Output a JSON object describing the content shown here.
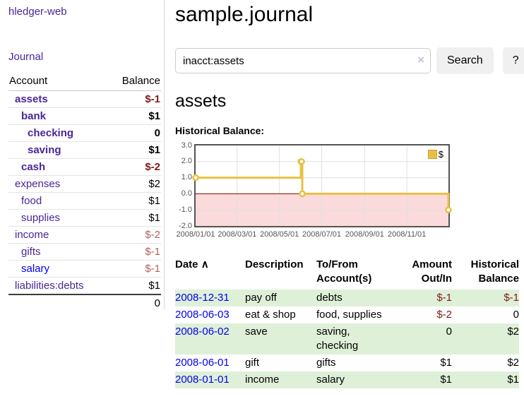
{
  "colors": {
    "link_purple": "#4b2696",
    "link_blue": "#0000ee",
    "negative_red": "#811a1a",
    "negative_muted_red": "#b26060",
    "row_stripe_green": "#dff0d8",
    "chart_gold": "#e9c044",
    "chart_negative_region": "#fadada",
    "chart_zero_line": "#8b0000"
  },
  "sidebar": {
    "brand": "hledger-web",
    "nav_journal": "Journal",
    "accounts": {
      "col_account": "Account",
      "col_balance": "Balance",
      "rows": [
        {
          "name": "assets",
          "depth": 1,
          "bold": true,
          "balance": "$-1",
          "balance_style": "neg-strong",
          "link_style": "visited"
        },
        {
          "name": "bank",
          "depth": 2,
          "bold": true,
          "balance": "$1",
          "balance_style": "pos-strong",
          "link_style": "visited"
        },
        {
          "name": "checking",
          "depth": 3,
          "bold": true,
          "balance": "0",
          "balance_style": "pos-strong",
          "link_style": "visited"
        },
        {
          "name": "saving",
          "depth": 3,
          "bold": true,
          "balance": "$1",
          "balance_style": "pos-strong",
          "link_style": "visited"
        },
        {
          "name": "cash",
          "depth": 2,
          "bold": true,
          "balance": "$-2",
          "balance_style": "neg-strong",
          "link_style": "visited"
        },
        {
          "name": "expenses",
          "depth": 1,
          "bold": false,
          "balance": "$2",
          "balance_style": "pos",
          "link_style": "visited"
        },
        {
          "name": "food",
          "depth": 2,
          "bold": false,
          "balance": "$1",
          "balance_style": "pos",
          "link_style": "visited"
        },
        {
          "name": "supplies",
          "depth": 2,
          "bold": false,
          "balance": "$1",
          "balance_style": "pos",
          "link_style": "visited"
        },
        {
          "name": "income",
          "depth": 1,
          "bold": false,
          "balance": "$-2",
          "balance_style": "neg-muted",
          "link_style": "visited"
        },
        {
          "name": "gifts",
          "depth": 2,
          "bold": false,
          "balance": "$-1",
          "balance_style": "neg-muted",
          "link_style": "visited"
        },
        {
          "name": "salary",
          "depth": 2,
          "bold": false,
          "balance": "$-1",
          "balance_style": "neg-muted",
          "link_style": "unvisited"
        },
        {
          "name": "liabilities:debts",
          "depth": 1,
          "bold": false,
          "balance": "$1",
          "balance_style": "pos",
          "link_style": "visited"
        }
      ],
      "total": "0"
    }
  },
  "main": {
    "title": "sample.journal",
    "search": {
      "value": "inacct:assets",
      "clear_icon": "×",
      "button": "Search",
      "help_button": "?"
    },
    "account_heading": "assets",
    "chart_label": "Historical Balance:",
    "register": {
      "sort_indicator": "∧",
      "columns": [
        {
          "label": "Date",
          "align": "left",
          "sortable": true
        },
        {
          "label": "Description",
          "align": "left"
        },
        {
          "label": "To/From Account(s)",
          "align": "left"
        },
        {
          "label": "Amount Out/In",
          "align": "right"
        },
        {
          "label": "Historical Balance",
          "align": "right"
        }
      ],
      "rows": [
        {
          "date": "2008-12-31",
          "description": "pay off",
          "accounts": "debts",
          "amount": "$-1",
          "amount_style": "neg",
          "balance": "$-1",
          "balance_style": "neg"
        },
        {
          "date": "2008-06-03",
          "description": "eat & shop",
          "accounts": "food, supplies",
          "amount": "$-2",
          "amount_style": "neg",
          "balance": "0",
          "balance_style": "pos"
        },
        {
          "date": "2008-06-02",
          "description": "save",
          "accounts": "saving, checking",
          "amount": "0",
          "amount_style": "pos",
          "balance": "$2",
          "balance_style": "pos"
        },
        {
          "date": "2008-06-01",
          "description": "gift",
          "accounts": "gifts",
          "amount": "$1",
          "amount_style": "pos",
          "balance": "$2",
          "balance_style": "pos"
        },
        {
          "date": "2008-01-01",
          "description": "income",
          "accounts": "salary",
          "amount": "$1",
          "amount_style": "pos",
          "balance": "$1",
          "balance_style": "pos"
        }
      ]
    }
  },
  "chart_data": {
    "type": "line",
    "step": true,
    "title": "Historical Balance",
    "series": [
      {
        "name": "$",
        "color": "#e9c044",
        "points": [
          [
            "2008-01-01",
            1
          ],
          [
            "2008-06-01",
            2
          ],
          [
            "2008-06-02",
            2
          ],
          [
            "2008-06-03",
            0
          ],
          [
            "2008-12-31",
            -1
          ]
        ]
      }
    ],
    "xlabel": "",
    "ylabel": "",
    "ylim": [
      -2.0,
      3.0
    ],
    "yticks": [
      "3.0",
      "2.0",
      "1.0",
      "0.0",
      "-1.0",
      "-2.0"
    ],
    "xticks": [
      "2008/01/01",
      "2008/03/01",
      "2008/05/01",
      "2008/07/01",
      "2008/09/01",
      "2008/11/01"
    ],
    "x_range": [
      "2008-01-01",
      "2008-12-31"
    ],
    "grid": true,
    "legend": {
      "label": "$",
      "position": "top-right"
    },
    "negative_region_color": "#fadada",
    "zero_line_color": "#8b0000"
  }
}
